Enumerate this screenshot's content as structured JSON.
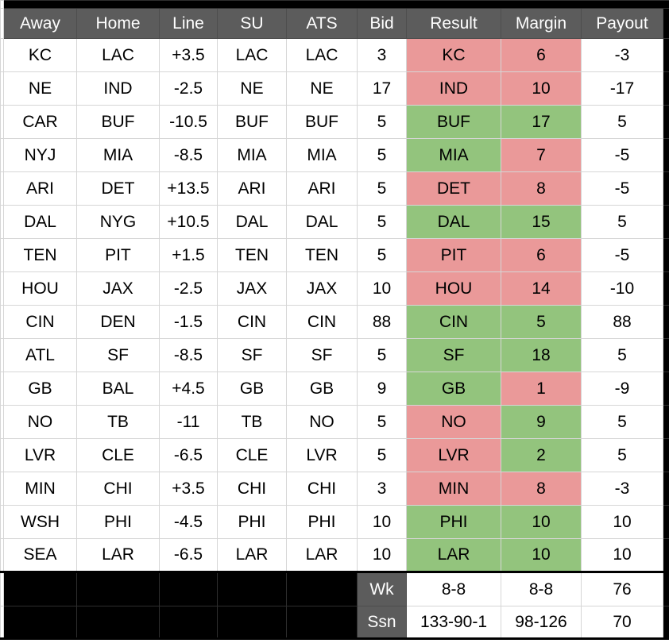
{
  "page": {
    "background": "#ffffff"
  },
  "colors": {
    "win": "#93c47d",
    "loss": "#ea9999",
    "header_bg": "#5c5c5c",
    "header_gridline": "#4e4e4e",
    "gridline": "#d6d6d6",
    "filler_black": "#000000"
  },
  "table": {
    "columns": [
      "Away",
      "Home",
      "Line",
      "SU",
      "ATS",
      "Bid",
      "Result",
      "Margin",
      "Payout"
    ],
    "rows": [
      {
        "away": "KC",
        "home": "LAC",
        "line": "+3.5",
        "su": "LAC",
        "ats": "LAC",
        "bid": "3",
        "result": "KC",
        "result_status": "loss",
        "margin": "6",
        "margin_status": "loss",
        "payout": "-3"
      },
      {
        "away": "NE",
        "home": "IND",
        "line": "-2.5",
        "su": "NE",
        "ats": "NE",
        "bid": "17",
        "result": "IND",
        "result_status": "loss",
        "margin": "10",
        "margin_status": "loss",
        "payout": "-17"
      },
      {
        "away": "CAR",
        "home": "BUF",
        "line": "-10.5",
        "su": "BUF",
        "ats": "BUF",
        "bid": "5",
        "result": "BUF",
        "result_status": "win",
        "margin": "17",
        "margin_status": "win",
        "payout": "5"
      },
      {
        "away": "NYJ",
        "home": "MIA",
        "line": "-8.5",
        "su": "MIA",
        "ats": "MIA",
        "bid": "5",
        "result": "MIA",
        "result_status": "win",
        "margin": "7",
        "margin_status": "loss",
        "payout": "-5"
      },
      {
        "away": "ARI",
        "home": "DET",
        "line": "+13.5",
        "su": "ARI",
        "ats": "ARI",
        "bid": "5",
        "result": "DET",
        "result_status": "loss",
        "margin": "8",
        "margin_status": "loss",
        "payout": "-5"
      },
      {
        "away": "DAL",
        "home": "NYG",
        "line": "+10.5",
        "su": "DAL",
        "ats": "DAL",
        "bid": "5",
        "result": "DAL",
        "result_status": "win",
        "margin": "15",
        "margin_status": "win",
        "payout": "5"
      },
      {
        "away": "TEN",
        "home": "PIT",
        "line": "+1.5",
        "su": "TEN",
        "ats": "TEN",
        "bid": "5",
        "result": "PIT",
        "result_status": "loss",
        "margin": "6",
        "margin_status": "loss",
        "payout": "-5"
      },
      {
        "away": "HOU",
        "home": "JAX",
        "line": "-2.5",
        "su": "JAX",
        "ats": "JAX",
        "bid": "10",
        "result": "HOU",
        "result_status": "loss",
        "margin": "14",
        "margin_status": "loss",
        "payout": "-10"
      },
      {
        "away": "CIN",
        "home": "DEN",
        "line": "-1.5",
        "su": "CIN",
        "ats": "CIN",
        "bid": "88",
        "result": "CIN",
        "result_status": "win",
        "margin": "5",
        "margin_status": "win",
        "payout": "88"
      },
      {
        "away": "ATL",
        "home": "SF",
        "line": "-8.5",
        "su": "SF",
        "ats": "SF",
        "bid": "5",
        "result": "SF",
        "result_status": "win",
        "margin": "18",
        "margin_status": "win",
        "payout": "5"
      },
      {
        "away": "GB",
        "home": "BAL",
        "line": "+4.5",
        "su": "GB",
        "ats": "GB",
        "bid": "9",
        "result": "GB",
        "result_status": "win",
        "margin": "1",
        "margin_status": "loss",
        "payout": "-9"
      },
      {
        "away": "NO",
        "home": "TB",
        "line": "-11",
        "su": "TB",
        "ats": "NO",
        "bid": "5",
        "result": "NO",
        "result_status": "loss",
        "margin": "9",
        "margin_status": "win",
        "payout": "5"
      },
      {
        "away": "LVR",
        "home": "CLE",
        "line": "-6.5",
        "su": "CLE",
        "ats": "LVR",
        "bid": "5",
        "result": "LVR",
        "result_status": "loss",
        "margin": "2",
        "margin_status": "win",
        "payout": "5"
      },
      {
        "away": "MIN",
        "home": "CHI",
        "line": "+3.5",
        "su": "CHI",
        "ats": "CHI",
        "bid": "3",
        "result": "MIN",
        "result_status": "loss",
        "margin": "8",
        "margin_status": "loss",
        "payout": "-3"
      },
      {
        "away": "WSH",
        "home": "PHI",
        "line": "-4.5",
        "su": "PHI",
        "ats": "PHI",
        "bid": "10",
        "result": "PHI",
        "result_status": "win",
        "margin": "10",
        "margin_status": "win",
        "payout": "10"
      },
      {
        "away": "SEA",
        "home": "LAR",
        "line": "-6.5",
        "su": "LAR",
        "ats": "LAR",
        "bid": "10",
        "result": "LAR",
        "result_status": "win",
        "margin": "10",
        "margin_status": "win",
        "payout": "10"
      }
    ],
    "footer": [
      {
        "label": "Wk",
        "result": "8-8",
        "margin": "8-8",
        "payout": "76"
      },
      {
        "label": "Ssn",
        "result": "133-90-1",
        "margin": "98-126",
        "payout": "70"
      }
    ]
  }
}
